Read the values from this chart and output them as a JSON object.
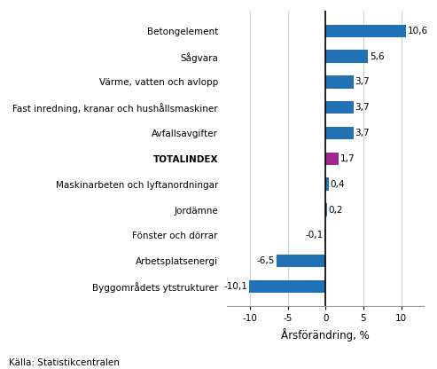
{
  "categories": [
    "Byggområdets ytstrukturer",
    "Arbetsplatsenergi",
    "Fönster och dörrar",
    "Jordämne",
    "Maskinarbeten och lyftanordningar",
    "TOTALINDEX",
    "Avfallsavgifter",
    "Fast inredning, kranar och hushållsmaskiner",
    "Värme, vatten och avlopp",
    "Sågvara",
    "Betongelement"
  ],
  "values": [
    -10.1,
    -6.5,
    -0.1,
    0.2,
    0.4,
    1.7,
    3.7,
    3.7,
    3.7,
    5.6,
    10.6
  ],
  "bar_colors": [
    "#2171b5",
    "#2171b5",
    "#2171b5",
    "#2171b5",
    "#2171b5",
    "#a0278f",
    "#2171b5",
    "#2171b5",
    "#2171b5",
    "#2171b5",
    "#2171b5"
  ],
  "value_labels": [
    "-10,1",
    "-6,5",
    "-0,1",
    "0,2",
    "0,4",
    "1,7",
    "3,7",
    "3,7",
    "3,7",
    "5,6",
    "10,6"
  ],
  "xlabel": "Årsförändring, %",
  "xlim": [
    -13,
    13
  ],
  "xticks": [
    -10,
    -5,
    0,
    5,
    10
  ],
  "source_text": "Källa: Statistikcentralen",
  "totalindex_label": "TOTALINDEX",
  "bg_color": "#ffffff",
  "grid_color": "#d0d0d0",
  "label_fontsize": 7.5,
  "axis_label_fontsize": 8.5,
  "source_fontsize": 7.5,
  "bar_height": 0.5
}
